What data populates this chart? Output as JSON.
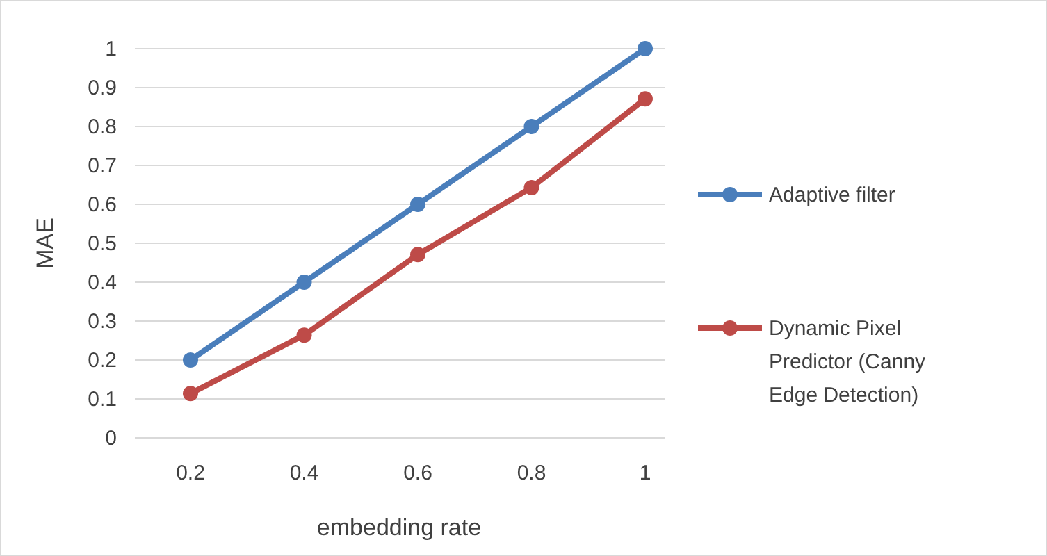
{
  "chart_data": {
    "type": "line",
    "xlabel": "embedding rate",
    "ylabel": "MAE",
    "categories": [
      "0.2",
      "0.4",
      "0.6",
      "0.8",
      "1"
    ],
    "series": [
      {
        "name": "Adaptive filter",
        "color": "#4a7ebb",
        "values": [
          0.2,
          0.4,
          0.6,
          0.8,
          1
        ]
      },
      {
        "name": "Dynamic Pixel Predictor (Canny Edge Detection)",
        "color": "#be4b48",
        "values": [
          0.114,
          0.264,
          0.471,
          0.643,
          0.871
        ]
      }
    ],
    "ylim": [
      0,
      1
    ],
    "yticks": [
      0,
      0.1,
      0.2,
      0.3,
      0.4,
      0.5,
      0.6,
      0.7,
      0.8,
      0.9,
      1
    ],
    "grid": "y",
    "legend": "right",
    "marker": "circle",
    "line_style": "solid"
  }
}
